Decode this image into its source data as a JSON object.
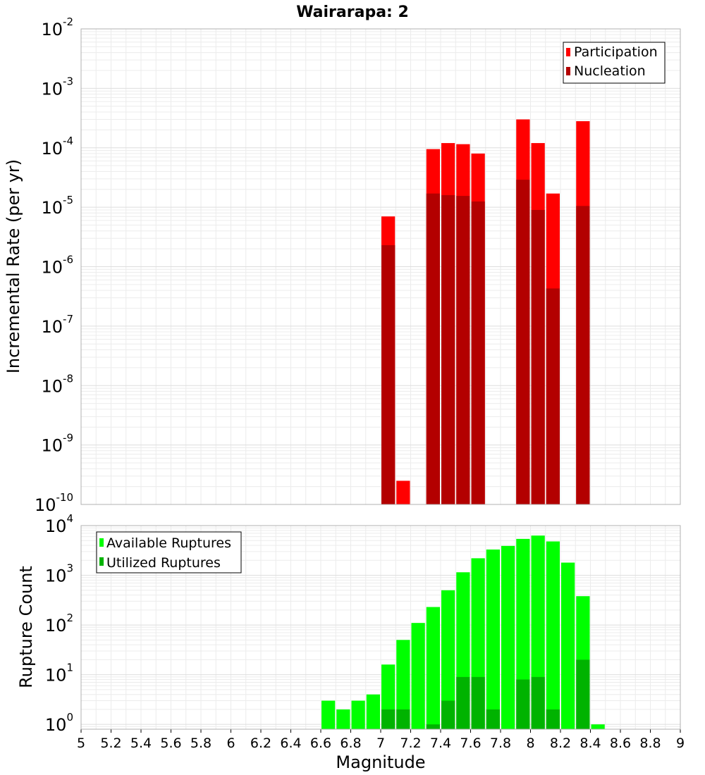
{
  "chart_data": [
    {
      "type": "bar",
      "title": "Wairarapa: 2",
      "ylabel": "Incremental Rate (per yr)",
      "xlim": [
        5,
        9
      ],
      "ylim": [
        1e-10,
        0.01
      ],
      "yscale": "log",
      "grid": true,
      "legend_position": "top-right",
      "x_ticks": [
        "5",
        "5.2",
        "5.4",
        "5.6",
        "5.8",
        "6",
        "6.2",
        "6.4",
        "6.6",
        "6.8",
        "7",
        "7.2",
        "7.4",
        "7.6",
        "7.8",
        "8",
        "8.2",
        "8.4",
        "8.6",
        "8.8",
        "9"
      ],
      "y_ticks": [
        {
          "base": "10",
          "exp": "-10",
          "value": 1e-10
        },
        {
          "base": "10",
          "exp": "-9",
          "value": 1e-09
        },
        {
          "base": "10",
          "exp": "-8",
          "value": 1e-08
        },
        {
          "base": "10",
          "exp": "-7",
          "value": 1e-07
        },
        {
          "base": "10",
          "exp": "-6",
          "value": 1e-06
        },
        {
          "base": "10",
          "exp": "-5",
          "value": 1e-05
        },
        {
          "base": "10",
          "exp": "-4",
          "value": 0.0001
        },
        {
          "base": "10",
          "exp": "-3",
          "value": 0.001
        },
        {
          "base": "10",
          "exp": "-2",
          "value": 0.01
        }
      ],
      "series": [
        {
          "name": "Participation",
          "color": "#ff0000",
          "x": [
            7.05,
            7.15,
            7.35,
            7.45,
            7.55,
            7.65,
            7.95,
            8.05,
            8.15,
            8.35
          ],
          "values": [
            7e-06,
            2.5e-10,
            9.5e-05,
            0.00012,
            0.000115,
            8e-05,
            0.0003,
            0.00012,
            1.7e-05,
            0.00028
          ]
        },
        {
          "name": "Nucleation",
          "color": "#b30000",
          "x": [
            7.05,
            7.35,
            7.45,
            7.55,
            7.65,
            7.95,
            8.05,
            8.15,
            8.35
          ],
          "values": [
            2.3e-06,
            1.7e-05,
            1.6e-05,
            1.55e-05,
            1.25e-05,
            2.9e-05,
            9e-06,
            4.3e-07,
            1.05e-05
          ]
        }
      ]
    },
    {
      "type": "bar",
      "xlabel": "Magnitude",
      "ylabel": "Rupture Count",
      "xlim": [
        5,
        9
      ],
      "ylim": [
        0.8,
        10000
      ],
      "yscale": "log",
      "grid": true,
      "legend_position": "top-left",
      "y_ticks": [
        {
          "base": "10",
          "exp": "0",
          "value": 1
        },
        {
          "base": "10",
          "exp": "1",
          "value": 10
        },
        {
          "base": "10",
          "exp": "2",
          "value": 100
        },
        {
          "base": "10",
          "exp": "3",
          "value": 1000
        },
        {
          "base": "10",
          "exp": "4",
          "value": 10000
        }
      ],
      "series": [
        {
          "name": "Available Ruptures",
          "color": "#00ff00",
          "x": [
            6.65,
            6.75,
            6.85,
            6.95,
            7.05,
            7.15,
            7.25,
            7.35,
            7.45,
            7.55,
            7.65,
            7.75,
            7.85,
            7.95,
            8.05,
            8.15,
            8.25,
            8.35,
            8.45
          ],
          "values": [
            3,
            2,
            3,
            4,
            16,
            50,
            110,
            230,
            500,
            1150,
            2200,
            3300,
            3900,
            5400,
            6300,
            4800,
            1800,
            380,
            1
          ]
        },
        {
          "name": "Utilized Ruptures",
          "color": "#00b300",
          "x": [
            7.05,
            7.15,
            7.35,
            7.45,
            7.55,
            7.65,
            7.75,
            7.95,
            8.05,
            8.15,
            8.35
          ],
          "values": [
            2,
            2,
            1,
            3,
            9,
            9,
            2,
            8,
            9,
            2,
            20
          ]
        }
      ]
    }
  ]
}
